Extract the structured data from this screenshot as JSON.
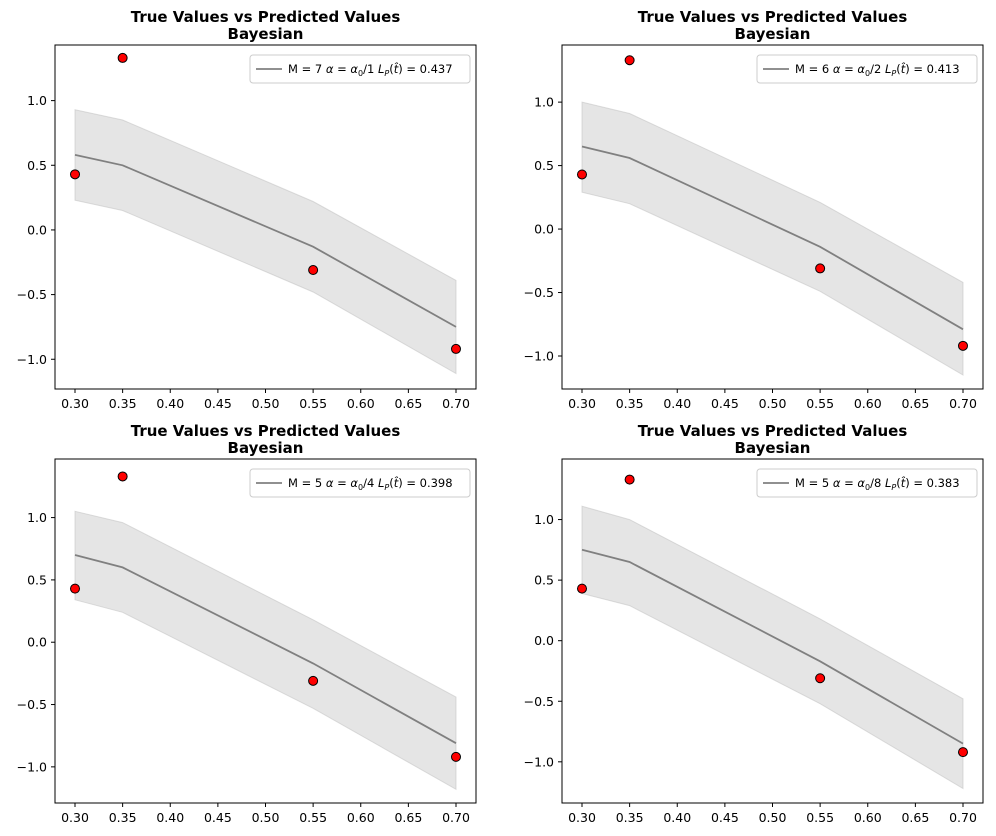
{
  "chart_data": [
    {
      "type": "line",
      "title": "True Values vs Predicted Values",
      "subtitle": "Bayesian",
      "x_ticks": [
        "0.30",
        "0.35",
        "0.40",
        "0.45",
        "0.50",
        "0.55",
        "0.60",
        "0.65",
        "0.70"
      ],
      "y_ticks": [
        "−1.0",
        "−0.5",
        "0.0",
        "0.5",
        "1.0"
      ],
      "xlim": [
        0.279,
        0.721
      ],
      "ylim": [
        -1.23,
        1.43
      ],
      "grid": false,
      "legend_position": "upper right",
      "legend_label": "M = 7 α = α₀/1 L_P(t̂) = 0.437",
      "legend_parts": {
        "prefix": "M = 7",
        "alpha_denominator": "1",
        "value": "0.437"
      },
      "x": [
        0.3,
        0.35,
        0.55,
        0.7
      ],
      "true_values": [
        0.43,
        1.33,
        -0.31,
        -0.92
      ],
      "predicted_mean": [
        0.58,
        0.5,
        -0.13,
        -0.75
      ],
      "band_upper": [
        0.93,
        0.85,
        0.22,
        -0.39
      ],
      "band_lower": [
        0.23,
        0.15,
        -0.48,
        -1.11
      ],
      "colors": {
        "line": "#808080",
        "band": "#d3d3d3",
        "marker": "#ff0000",
        "marker_edge": "#000000"
      }
    },
    {
      "type": "line",
      "title": "True Values vs Predicted Values",
      "subtitle": "Bayesian",
      "x_ticks": [
        "0.30",
        "0.35",
        "0.40",
        "0.45",
        "0.50",
        "0.55",
        "0.60",
        "0.65",
        "0.70"
      ],
      "y_ticks": [
        "−1.0",
        "−0.5",
        "0.0",
        "0.5",
        "1.0"
      ],
      "xlim": [
        0.279,
        0.721
      ],
      "ylim": [
        -1.26,
        1.45
      ],
      "grid": false,
      "legend_position": "upper right",
      "legend_label": "M = 6 α = α₀/2 L_P(t̂) = 0.413",
      "legend_parts": {
        "prefix": "M = 6",
        "alpha_denominator": "2",
        "value": "0.413"
      },
      "x": [
        0.3,
        0.35,
        0.55,
        0.7
      ],
      "true_values": [
        0.43,
        1.33,
        -0.31,
        -0.92
      ],
      "predicted_mean": [
        0.65,
        0.56,
        -0.14,
        -0.79
      ],
      "band_upper": [
        1.0,
        0.91,
        0.21,
        -0.42
      ],
      "band_lower": [
        0.29,
        0.2,
        -0.49,
        -1.15
      ],
      "colors": {
        "line": "#808080",
        "band": "#d3d3d3",
        "marker": "#ff0000",
        "marker_edge": "#000000"
      }
    },
    {
      "type": "line",
      "title": "True Values vs Predicted Values",
      "subtitle": "Bayesian",
      "x_ticks": [
        "0.30",
        "0.35",
        "0.40",
        "0.45",
        "0.50",
        "0.55",
        "0.60",
        "0.65",
        "0.70"
      ],
      "y_ticks": [
        "−1.0",
        "−0.5",
        "0.0",
        "0.5",
        "1.0"
      ],
      "xlim": [
        0.279,
        0.721
      ],
      "ylim": [
        -1.29,
        1.47
      ],
      "grid": false,
      "legend_position": "upper right",
      "legend_label": "M = 5 α = α₀/4 L_P(t̂) = 0.398",
      "legend_parts": {
        "prefix": "M = 5",
        "alpha_denominator": "4",
        "value": "0.398"
      },
      "x": [
        0.3,
        0.35,
        0.55,
        0.7
      ],
      "true_values": [
        0.43,
        1.33,
        -0.31,
        -0.92
      ],
      "predicted_mean": [
        0.7,
        0.6,
        -0.17,
        -0.81
      ],
      "band_upper": [
        1.05,
        0.96,
        0.18,
        -0.44
      ],
      "band_lower": [
        0.34,
        0.24,
        -0.53,
        -1.18
      ],
      "colors": {
        "line": "#808080",
        "band": "#d3d3d3",
        "marker": "#ff0000",
        "marker_edge": "#000000"
      }
    },
    {
      "type": "line",
      "title": "True Values vs Predicted Values",
      "subtitle": "Bayesian",
      "x_ticks": [
        "0.30",
        "0.35",
        "0.40",
        "0.45",
        "0.50",
        "0.55",
        "0.60",
        "0.65",
        "0.70"
      ],
      "y_ticks": [
        "−1.0",
        "−0.5",
        "0.0",
        "0.5",
        "1.0"
      ],
      "xlim": [
        0.279,
        0.721
      ],
      "ylim": [
        -1.34,
        1.5
      ],
      "grid": false,
      "legend_position": "upper right",
      "legend_label": "M = 5 α = α₀/8 L_P(t̂) = 0.383",
      "legend_parts": {
        "prefix": "M = 5",
        "alpha_denominator": "8",
        "value": "0.383"
      },
      "x": [
        0.3,
        0.35,
        0.55,
        0.7
      ],
      "true_values": [
        0.43,
        1.33,
        -0.31,
        -0.92
      ],
      "predicted_mean": [
        0.75,
        0.65,
        -0.17,
        -0.85
      ],
      "band_upper": [
        1.11,
        1.0,
        0.18,
        -0.48
      ],
      "band_lower": [
        0.39,
        0.29,
        -0.52,
        -1.22
      ],
      "colors": {
        "line": "#808080",
        "band": "#d3d3d3",
        "marker": "#ff0000",
        "marker_edge": "#000000"
      }
    }
  ]
}
